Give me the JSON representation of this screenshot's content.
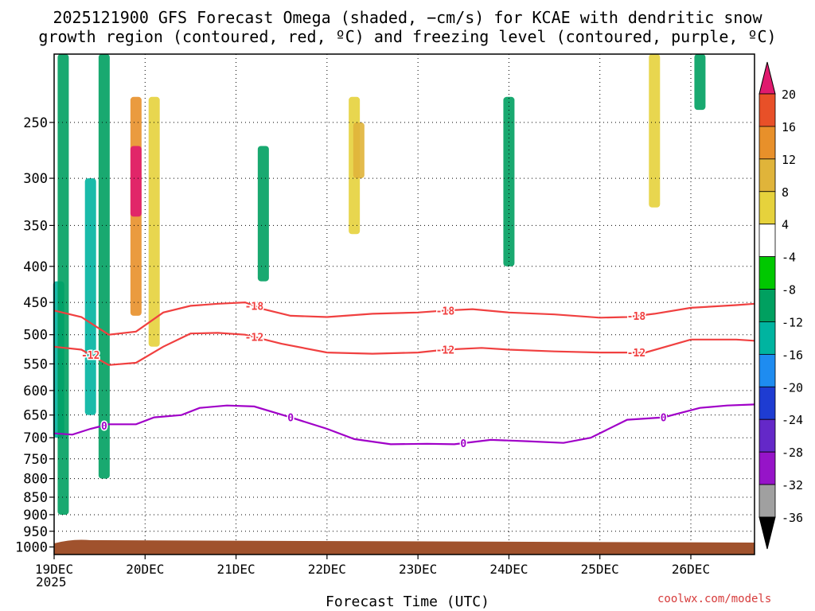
{
  "chart_data": {
    "type": "heatmap",
    "title_line1": "2025121900 GFS Forecast Omega (shaded, −cm/s) for KCAE with dendritic snow",
    "title_line2": "growth region (contoured, red, ºC) and freezing level (contoured, purple, ºC)",
    "xlabel": "Forecast Time (UTC)",
    "x_year_label": "2025",
    "x_ticks": [
      "19DEC",
      "20DEC",
      "21DEC",
      "22DEC",
      "23DEC",
      "24DEC",
      "25DEC",
      "26DEC"
    ],
    "x_range_days": [
      0,
      7.7
    ],
    "y_ticks": [
      250,
      300,
      350,
      400,
      450,
      500,
      550,
      600,
      650,
      700,
      750,
      800,
      850,
      900,
      950,
      1000
    ],
    "y_range_hpa": [
      200,
      1025
    ],
    "y_scale": "log",
    "colorbar": {
      "levels": [
        -36,
        -32,
        -28,
        -24,
        -20,
        -16,
        -12,
        -8,
        -4,
        4,
        8,
        12,
        16,
        20
      ],
      "labels": [
        "20",
        "16",
        "12",
        "8",
        "4",
        "-4",
        "-8",
        "-12",
        "-16",
        "-20",
        "-24",
        "-28",
        "-32",
        "-36"
      ],
      "colors": [
        "#ffffff",
        "#e6d23c",
        "#e0b43a",
        "#e8902a",
        "#e85028",
        "#e01a6e",
        "#c8107c",
        "#00c800",
        "#00a060",
        "#00b4a0",
        "#1e8cf0",
        "#1e3cd2",
        "#6428c8",
        "#9614c8",
        "#a0a0a0",
        "#000000"
      ]
    },
    "contours": [
      {
        "name": "-18",
        "color": "#f04040",
        "label_positions_days": [
          2.2,
          4.3,
          6.4
        ],
        "points": [
          [
            0,
            462
          ],
          [
            0.3,
            472
          ],
          [
            0.6,
            500
          ],
          [
            0.9,
            495
          ],
          [
            1.2,
            465
          ],
          [
            1.5,
            455
          ],
          [
            1.8,
            452
          ],
          [
            2.1,
            450
          ],
          [
            2.3,
            460
          ],
          [
            2.6,
            470
          ],
          [
            3.0,
            472
          ],
          [
            3.5,
            467
          ],
          [
            4.0,
            465
          ],
          [
            4.3,
            462
          ],
          [
            4.6,
            460
          ],
          [
            5.0,
            465
          ],
          [
            5.5,
            468
          ],
          [
            6.0,
            473
          ],
          [
            6.3,
            472
          ],
          [
            6.6,
            467
          ],
          [
            7.0,
            458
          ],
          [
            7.5,
            454
          ],
          [
            7.7,
            452
          ]
        ]
      },
      {
        "name": "-12",
        "color": "#f04040",
        "label_positions_days": [
          0.4,
          2.2,
          4.3,
          6.4
        ],
        "points": [
          [
            0,
            520
          ],
          [
            0.3,
            525
          ],
          [
            0.6,
            552
          ],
          [
            0.9,
            548
          ],
          [
            1.2,
            520
          ],
          [
            1.5,
            498
          ],
          [
            1.8,
            497
          ],
          [
            2.1,
            500
          ],
          [
            2.5,
            515
          ],
          [
            3.0,
            530
          ],
          [
            3.5,
            532
          ],
          [
            4.0,
            530
          ],
          [
            4.3,
            525
          ],
          [
            4.7,
            522
          ],
          [
            5.0,
            525
          ],
          [
            5.5,
            528
          ],
          [
            6.0,
            530
          ],
          [
            6.5,
            530
          ],
          [
            7.0,
            508
          ],
          [
            7.5,
            508
          ],
          [
            7.7,
            510
          ]
        ]
      },
      {
        "name": "0",
        "color": "#a000c8",
        "label_positions_days": [
          0.55,
          2.6,
          4.5,
          6.7
        ],
        "points": [
          [
            0,
            690
          ],
          [
            0.2,
            693
          ],
          [
            0.4,
            680
          ],
          [
            0.6,
            670
          ],
          [
            0.9,
            670
          ],
          [
            1.1,
            655
          ],
          [
            1.4,
            650
          ],
          [
            1.6,
            635
          ],
          [
            1.9,
            630
          ],
          [
            2.2,
            632
          ],
          [
            2.6,
            655
          ],
          [
            3.0,
            680
          ],
          [
            3.3,
            703
          ],
          [
            3.7,
            715
          ],
          [
            4.1,
            714
          ],
          [
            4.4,
            715
          ],
          [
            4.8,
            705
          ],
          [
            5.2,
            708
          ],
          [
            5.6,
            712
          ],
          [
            5.9,
            700
          ],
          [
            6.3,
            660
          ],
          [
            6.7,
            655
          ],
          [
            7.1,
            635
          ],
          [
            7.4,
            630
          ],
          [
            7.7,
            628
          ]
        ]
      }
    ],
    "shaded_regions": [
      {
        "day": 0.05,
        "p_top": 420,
        "p_bot": 700,
        "value": -12
      },
      {
        "day": 0.1,
        "p_top": 200,
        "p_bot": 900,
        "value": -8
      },
      {
        "day": 0.4,
        "p_top": 300,
        "p_bot": 650,
        "value": -12
      },
      {
        "day": 0.55,
        "p_top": 200,
        "p_bot": 800,
        "value": -8
      },
      {
        "day": 0.9,
        "p_top": 230,
        "p_bot": 470,
        "value": 12
      },
      {
        "day": 0.9,
        "p_top": 270,
        "p_bot": 340,
        "value": 20
      },
      {
        "day": 1.1,
        "p_top": 230,
        "p_bot": 520,
        "value": 6
      },
      {
        "day": 2.3,
        "p_top": 270,
        "p_bot": 420,
        "value": -8
      },
      {
        "day": 3.3,
        "p_top": 230,
        "p_bot": 360,
        "value": 6
      },
      {
        "day": 3.35,
        "p_top": 250,
        "p_bot": 300,
        "value": 10
      },
      {
        "day": 5.0,
        "p_top": 230,
        "p_bot": 400,
        "value": -8
      },
      {
        "day": 6.6,
        "p_top": 200,
        "p_bot": 330,
        "value": 5
      },
      {
        "day": 7.1,
        "p_top": 200,
        "p_bot": 240,
        "value": -8
      }
    ],
    "terrain_color": "#a0522d"
  },
  "watermark": "coolwx.com/models"
}
